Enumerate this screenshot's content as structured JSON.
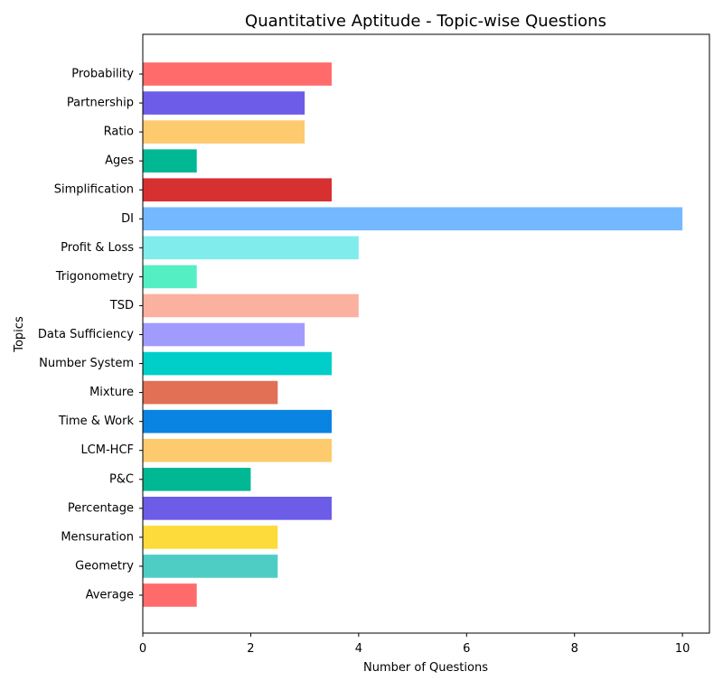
{
  "chart_data": {
    "type": "bar",
    "orientation": "horizontal",
    "title": "Quantitative Aptitude - Topic-wise Questions",
    "xlabel": "Number of Questions",
    "ylabel": "Topics",
    "xlim": [
      0,
      10.5
    ],
    "xticks": [
      0,
      2,
      4,
      6,
      8,
      10
    ],
    "grid": false,
    "categories": [
      "Average",
      "Geometry",
      "Mensuration",
      "Percentage",
      "P&C",
      "LCM-HCF",
      "Time & Work",
      "Mixture",
      "Number System",
      "Data Sufficiency",
      "TSD",
      "Trigonometry",
      "Profit & Loss",
      "DI",
      "Simplification",
      "Ages",
      "Ratio",
      "Partnership",
      "Probability"
    ],
    "values": [
      1,
      2.5,
      2.5,
      3.5,
      2,
      3.5,
      3.5,
      2.5,
      3.5,
      3,
      4,
      1,
      4,
      10,
      3.5,
      1,
      3,
      3,
      3.5
    ],
    "colors": [
      "#ff6b6b",
      "#4ecdc4",
      "#fddb3a",
      "#6c5ce7",
      "#00b894",
      "#fdcb6e",
      "#0984e3",
      "#e17055",
      "#00cec9",
      "#a29bfe",
      "#fab1a0",
      "#55efc4",
      "#81ecec",
      "#74b9ff",
      "#d63031",
      "#00b894",
      "#fdcb6e",
      "#6c5ce7",
      "#ff6b6b"
    ]
  }
}
